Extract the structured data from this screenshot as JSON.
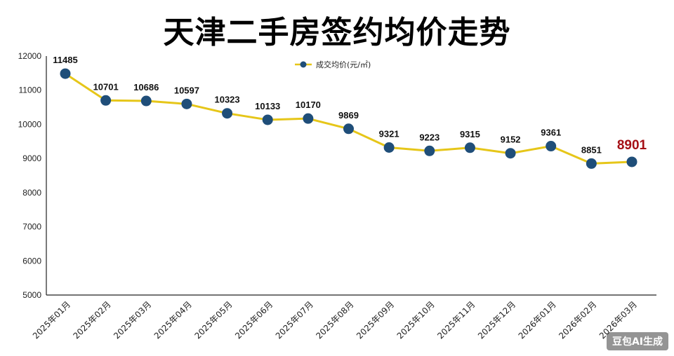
{
  "chart_data": {
    "type": "line",
    "title": "天津二手房签约均价走势",
    "xlabel": "",
    "ylabel": "",
    "ylim": [
      5000,
      12000
    ],
    "yticks": [
      5000,
      6000,
      7000,
      8000,
      9000,
      10000,
      11000,
      12000
    ],
    "grid": false,
    "legend_position": "top-center",
    "categories": [
      "2025年01月",
      "2025年02月",
      "2025年03月",
      "2025年04月",
      "2025年05月",
      "2025年06月",
      "2025年07月",
      "2025年08月",
      "2025年09月",
      "2025年10月",
      "2025年11月",
      "2025年12月",
      "2026年01月",
      "2026年02月",
      "2026年03月"
    ],
    "series": [
      {
        "name": "成交均价(元/㎡)",
        "values": [
          11485,
          10701,
          10686,
          10597,
          10323,
          10133,
          10170,
          9869,
          9321,
          9223,
          9315,
          9152,
          9361,
          8851,
          8901
        ],
        "line_color": "#e6c619",
        "marker_color": "#1f4e79"
      }
    ],
    "highlight_color": "#a50f15"
  },
  "watermark": "豆包AI生成"
}
